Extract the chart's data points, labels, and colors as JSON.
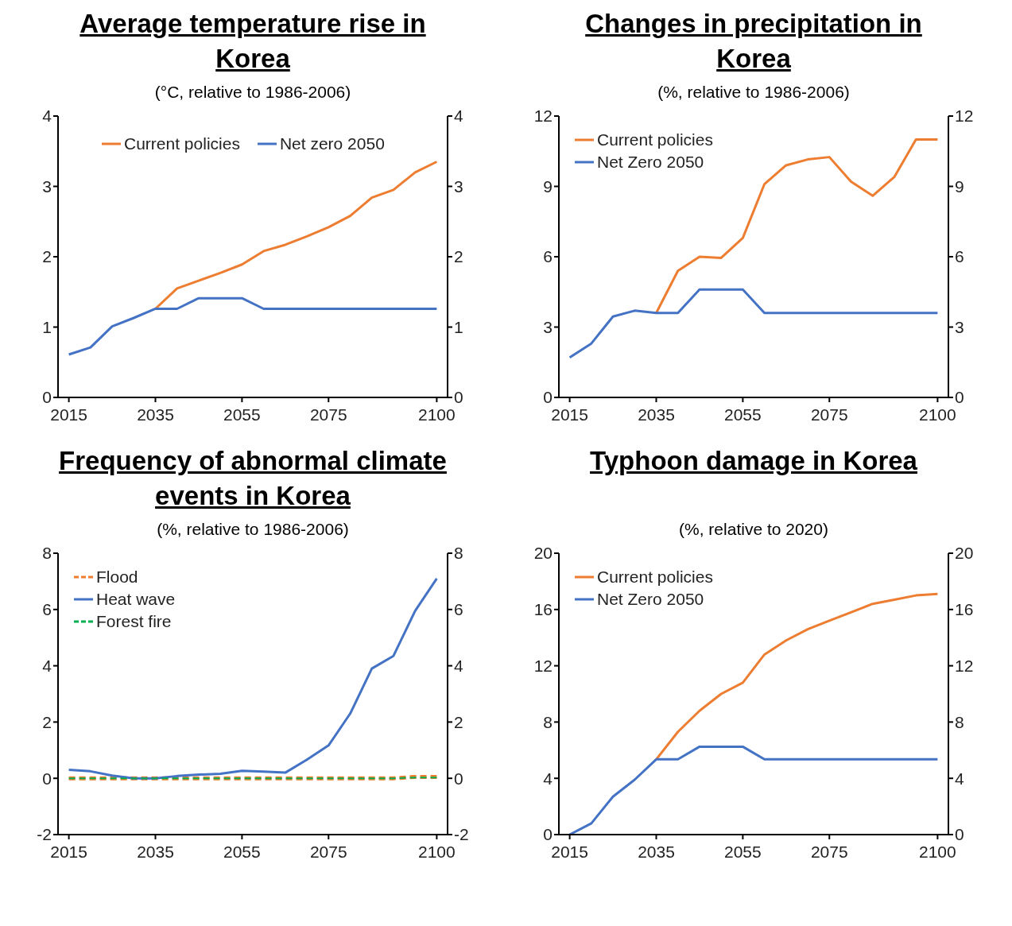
{
  "chart_data": [
    {
      "type": "line",
      "title": "Average temperature rise in Korea",
      "subtitle": "(°C, relative to 1986-2006)",
      "x": [
        2015,
        2020,
        2025,
        2030,
        2035,
        2040,
        2045,
        2050,
        2055,
        2060,
        2065,
        2070,
        2075,
        2080,
        2085,
        2090,
        2095,
        2100
      ],
      "xlim": [
        2012.5,
        2102.5
      ],
      "xticks": [
        2015,
        2035,
        2055,
        2075,
        2100
      ],
      "ylim": [
        0,
        4
      ],
      "yticks": [
        0,
        1,
        2,
        3,
        4
      ],
      "y2lim": [
        0,
        4
      ],
      "y2ticks": [
        0,
        1,
        2,
        3,
        4
      ],
      "legend": "top",
      "series": [
        {
          "name": "Current policies",
          "color": "#ed7d31",
          "values": [
            null,
            null,
            null,
            null,
            1.26,
            1.55,
            1.66,
            1.77,
            1.89,
            2.08,
            2.17,
            2.29,
            2.42,
            2.58,
            2.84,
            2.95,
            3.2,
            3.35
          ]
        },
        {
          "name": "Net zero 2050",
          "color": "#4472c4",
          "values": [
            0.61,
            0.71,
            1.01,
            1.13,
            1.26,
            1.26,
            1.41,
            1.41,
            1.41,
            1.26,
            1.26,
            1.26,
            1.26,
            1.26,
            1.26,
            1.26,
            1.26,
            1.26
          ]
        }
      ]
    },
    {
      "type": "line",
      "title": "Changes in precipitation in Korea",
      "subtitle": "(%, relative to 1986-2006)",
      "x": [
        2015,
        2020,
        2025,
        2030,
        2035,
        2040,
        2045,
        2050,
        2055,
        2060,
        2065,
        2070,
        2075,
        2080,
        2085,
        2090,
        2095,
        2100
      ],
      "xlim": [
        2012.5,
        2102.5
      ],
      "xticks": [
        2015,
        2035,
        2055,
        2075,
        2100
      ],
      "ylim": [
        0,
        12
      ],
      "yticks": [
        0,
        3,
        6,
        9,
        12
      ],
      "y2lim": [
        0,
        12
      ],
      "y2ticks": [
        0,
        3,
        6,
        9,
        12
      ],
      "legend": "top left",
      "series": [
        {
          "name": "Current policies",
          "color": "#ed7d31",
          "values": [
            null,
            null,
            null,
            null,
            3.6,
            5.4,
            6.0,
            5.95,
            6.8,
            9.1,
            9.9,
            10.15,
            10.25,
            9.2,
            8.6,
            9.4,
            11.0,
            11.0
          ]
        },
        {
          "name": "Net Zero 2050",
          "color": "#4472c4",
          "values": [
            1.7,
            2.3,
            3.45,
            3.7,
            3.6,
            3.6,
            4.6,
            4.6,
            4.6,
            3.6,
            3.6,
            3.6,
            3.6,
            3.6,
            3.6,
            3.6,
            3.6,
            3.6
          ]
        }
      ]
    },
    {
      "type": "line",
      "title": "Frequency of abnormal climate events in Korea",
      "subtitle": "(%, relative to 1986-2006)",
      "x": [
        2015,
        2020,
        2025,
        2030,
        2035,
        2040,
        2045,
        2050,
        2055,
        2060,
        2065,
        2070,
        2075,
        2080,
        2085,
        2090,
        2095,
        2100
      ],
      "xlim": [
        2012.5,
        2102.5
      ],
      "xticks": [
        2015,
        2035,
        2055,
        2075,
        2100
      ],
      "ylim": [
        -2,
        8
      ],
      "yticks": [
        -2,
        0,
        2,
        4,
        6,
        8
      ],
      "y2lim": [
        -2,
        8
      ],
      "y2ticks": [
        -2,
        0,
        2,
        4,
        6,
        8
      ],
      "legend": "top left",
      "series": [
        {
          "name": "Flood",
          "color": "#ed7d31",
          "line_style": "dashed",
          "values": [
            0,
            0,
            0,
            0,
            0,
            0,
            0,
            0,
            0,
            0,
            0,
            0,
            0,
            0,
            0,
            0,
            0.05,
            0.05
          ]
        },
        {
          "name": "Heat wave",
          "color": "#4472c4",
          "values": [
            0.3,
            0.25,
            0.1,
            0,
            0,
            0.08,
            0.13,
            0.16,
            0.27,
            0.24,
            0.2,
            0.66,
            1.17,
            2.3,
            3.9,
            4.35,
            5.95,
            7.1
          ]
        },
        {
          "name": "Forest fire",
          "color": "#00b050",
          "line_style": "dashed",
          "values": [
            0,
            0,
            0,
            0,
            0,
            0,
            0,
            0,
            0,
            0,
            0,
            0,
            0,
            0,
            0,
            0,
            0.03,
            0.03
          ]
        }
      ]
    },
    {
      "type": "line",
      "title": "Typhoon damage in Korea",
      "subtitle": "(%, relative to 2020)",
      "x": [
        2015,
        2020,
        2025,
        2030,
        2035,
        2040,
        2045,
        2050,
        2055,
        2060,
        2065,
        2070,
        2075,
        2080,
        2085,
        2090,
        2095,
        2100
      ],
      "xlim": [
        2012.5,
        2102.5
      ],
      "xticks": [
        2015,
        2035,
        2055,
        2075,
        2100
      ],
      "ylim": [
        0,
        20
      ],
      "yticks": [
        0,
        4,
        8,
        12,
        16,
        20
      ],
      "y2lim": [
        0,
        20
      ],
      "y2ticks": [
        0,
        4,
        8,
        12,
        16,
        20
      ],
      "legend": "top left",
      "series": [
        {
          "name": "Current policies",
          "color": "#ed7d31",
          "values": [
            null,
            null,
            null,
            null,
            5.35,
            7.3,
            8.8,
            10.0,
            10.8,
            12.8,
            13.8,
            14.6,
            15.2,
            15.8,
            16.4,
            16.7,
            17.0,
            17.1
          ]
        },
        {
          "name": "Net Zero 2050",
          "color": "#4472c4",
          "values": [
            0,
            0.8,
            2.7,
            3.9,
            5.35,
            5.35,
            6.25,
            6.25,
            6.25,
            5.35,
            5.35,
            5.35,
            5.35,
            5.35,
            5.35,
            5.35,
            5.35,
            5.35
          ]
        }
      ]
    }
  ]
}
